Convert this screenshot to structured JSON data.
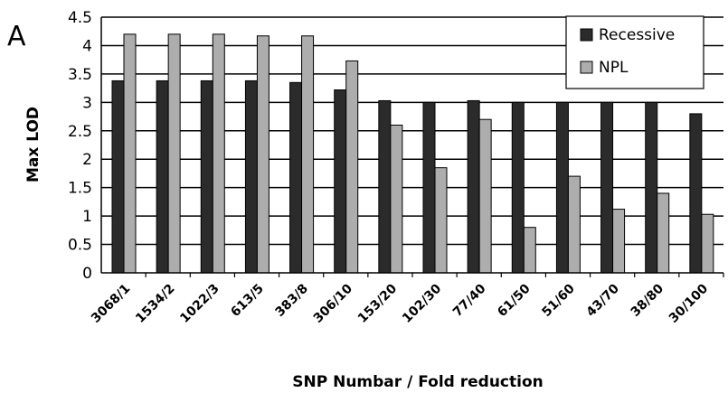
{
  "panel_label": "A",
  "colors": {
    "recessive": "#2b2b2b",
    "npl": "#adadad",
    "stroke": "#000000",
    "grid": "#000000"
  },
  "chart_data": {
    "type": "bar",
    "title": "",
    "xlabel": "SNP Numbar / Fold reduction",
    "ylabel": "Max LOD",
    "ylim": [
      0,
      4.5
    ],
    "yticks": [
      "0",
      "0.5",
      "1",
      "1.5",
      "2",
      "2.5",
      "3",
      "3.5",
      "4",
      "4.5"
    ],
    "grid": true,
    "legend_position": "top-right",
    "categories": [
      "3068/1",
      "1534/2",
      "1022/3",
      "613/5",
      "383/8",
      "306/10",
      "153/20",
      "102/30",
      "77/40",
      "61/50",
      "51/60",
      "43/70",
      "38/80",
      "30/100"
    ],
    "series": [
      {
        "name": "Recessive",
        "values": [
          3.38,
          3.38,
          3.38,
          3.38,
          3.35,
          3.22,
          3.03,
          3.0,
          3.03,
          3.0,
          3.0,
          3.0,
          3.0,
          2.8
        ]
      },
      {
        "name": "NPL",
        "values": [
          4.2,
          4.2,
          4.2,
          4.17,
          4.17,
          3.73,
          2.6,
          1.85,
          2.7,
          0.8,
          1.7,
          1.12,
          1.4,
          1.03
        ]
      }
    ]
  }
}
